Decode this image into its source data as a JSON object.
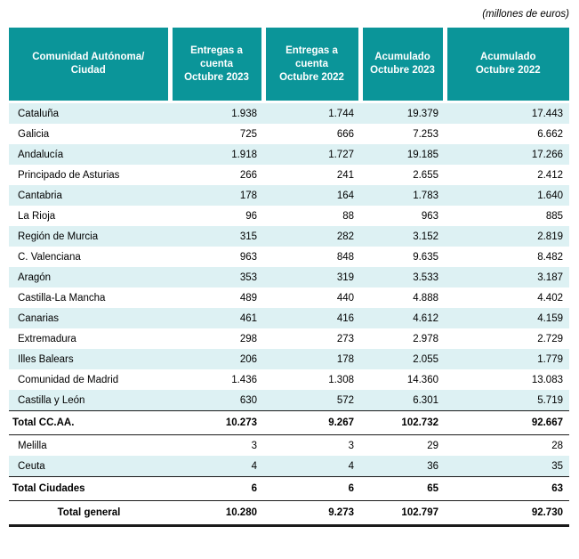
{
  "units_note": "(millones de euros)",
  "colors": {
    "header_bg": "#0b9599",
    "header_text": "#ffffff",
    "row_shaded": "#ddf1f3",
    "total_border": "#1a1a1a"
  },
  "table": {
    "columns": [
      {
        "label": "Comunidad Autónoma/Ciudad",
        "lines": [
          "Comunidad Autónoma/",
          "Ciudad"
        ]
      },
      {
        "label": "Entregas a cuenta Octubre 2023",
        "lines": [
          "Entregas a",
          "cuenta",
          "Octubre 2023"
        ]
      },
      {
        "label": "Entregas a cuenta Octubre 2022",
        "lines": [
          "Entregas a",
          "cuenta",
          "Octubre 2022"
        ]
      },
      {
        "label": "Acumulado Octubre 2023",
        "lines": [
          "Acumulado",
          "Octubre 2023"
        ]
      },
      {
        "label": "Acumulado Octubre 2022",
        "lines": [
          "Acumulado",
          "Octubre 2022"
        ]
      }
    ],
    "rows": [
      {
        "label": "Cataluña",
        "values": [
          "1.938",
          "1.744",
          "19.379",
          "17.443"
        ],
        "type": "data",
        "shaded": true
      },
      {
        "label": "Galicia",
        "values": [
          "725",
          "666",
          "7.253",
          "6.662"
        ],
        "type": "data",
        "shaded": false
      },
      {
        "label": "Andalucía",
        "values": [
          "1.918",
          "1.727",
          "19.185",
          "17.266"
        ],
        "type": "data",
        "shaded": true
      },
      {
        "label": "Principado de Asturias",
        "values": [
          "266",
          "241",
          "2.655",
          "2.412"
        ],
        "type": "data",
        "shaded": false
      },
      {
        "label": "Cantabria",
        "values": [
          "178",
          "164",
          "1.783",
          "1.640"
        ],
        "type": "data",
        "shaded": true
      },
      {
        "label": "La Rioja",
        "values": [
          "96",
          "88",
          "963",
          "885"
        ],
        "type": "data",
        "shaded": false
      },
      {
        "label": "Región de Murcia",
        "values": [
          "315",
          "282",
          "3.152",
          "2.819"
        ],
        "type": "data",
        "shaded": true
      },
      {
        "label": "C. Valenciana",
        "values": [
          "963",
          "848",
          "9.635",
          "8.482"
        ],
        "type": "data",
        "shaded": false
      },
      {
        "label": "Aragón",
        "values": [
          "353",
          "319",
          "3.533",
          "3.187"
        ],
        "type": "data",
        "shaded": true
      },
      {
        "label": "Castilla-La Mancha",
        "values": [
          "489",
          "440",
          "4.888",
          "4.402"
        ],
        "type": "data",
        "shaded": false
      },
      {
        "label": "Canarias",
        "values": [
          "461",
          "416",
          "4.612",
          "4.159"
        ],
        "type": "data",
        "shaded": true
      },
      {
        "label": "Extremadura",
        "values": [
          "298",
          "273",
          "2.978",
          "2.729"
        ],
        "type": "data",
        "shaded": false
      },
      {
        "label": "Illes Balears",
        "values": [
          "206",
          "178",
          "2.055",
          "1.779"
        ],
        "type": "data",
        "shaded": true
      },
      {
        "label": "Comunidad de Madrid",
        "values": [
          "1.436",
          "1.308",
          "14.360",
          "13.083"
        ],
        "type": "data",
        "shaded": false
      },
      {
        "label": "Castilla y León",
        "values": [
          "630",
          "572",
          "6.301",
          "5.719"
        ],
        "type": "data",
        "shaded": true
      },
      {
        "label": "Total CC.AA.",
        "values": [
          "10.273",
          "9.267",
          "102.732",
          "92.667"
        ],
        "type": "total",
        "shaded": false
      },
      {
        "label": "Melilla",
        "values": [
          "3",
          "3",
          "29",
          "28"
        ],
        "type": "data",
        "shaded": false
      },
      {
        "label": "Ceuta",
        "values": [
          "4",
          "4",
          "36",
          "35"
        ],
        "type": "data",
        "shaded": true
      },
      {
        "label": "Total Ciudades",
        "values": [
          "6",
          "6",
          "65",
          "63"
        ],
        "type": "total",
        "shaded": false
      },
      {
        "label": "Total general",
        "values": [
          "10.280",
          "9.273",
          "102.797",
          "92.730"
        ],
        "type": "grand",
        "shaded": false
      }
    ]
  }
}
